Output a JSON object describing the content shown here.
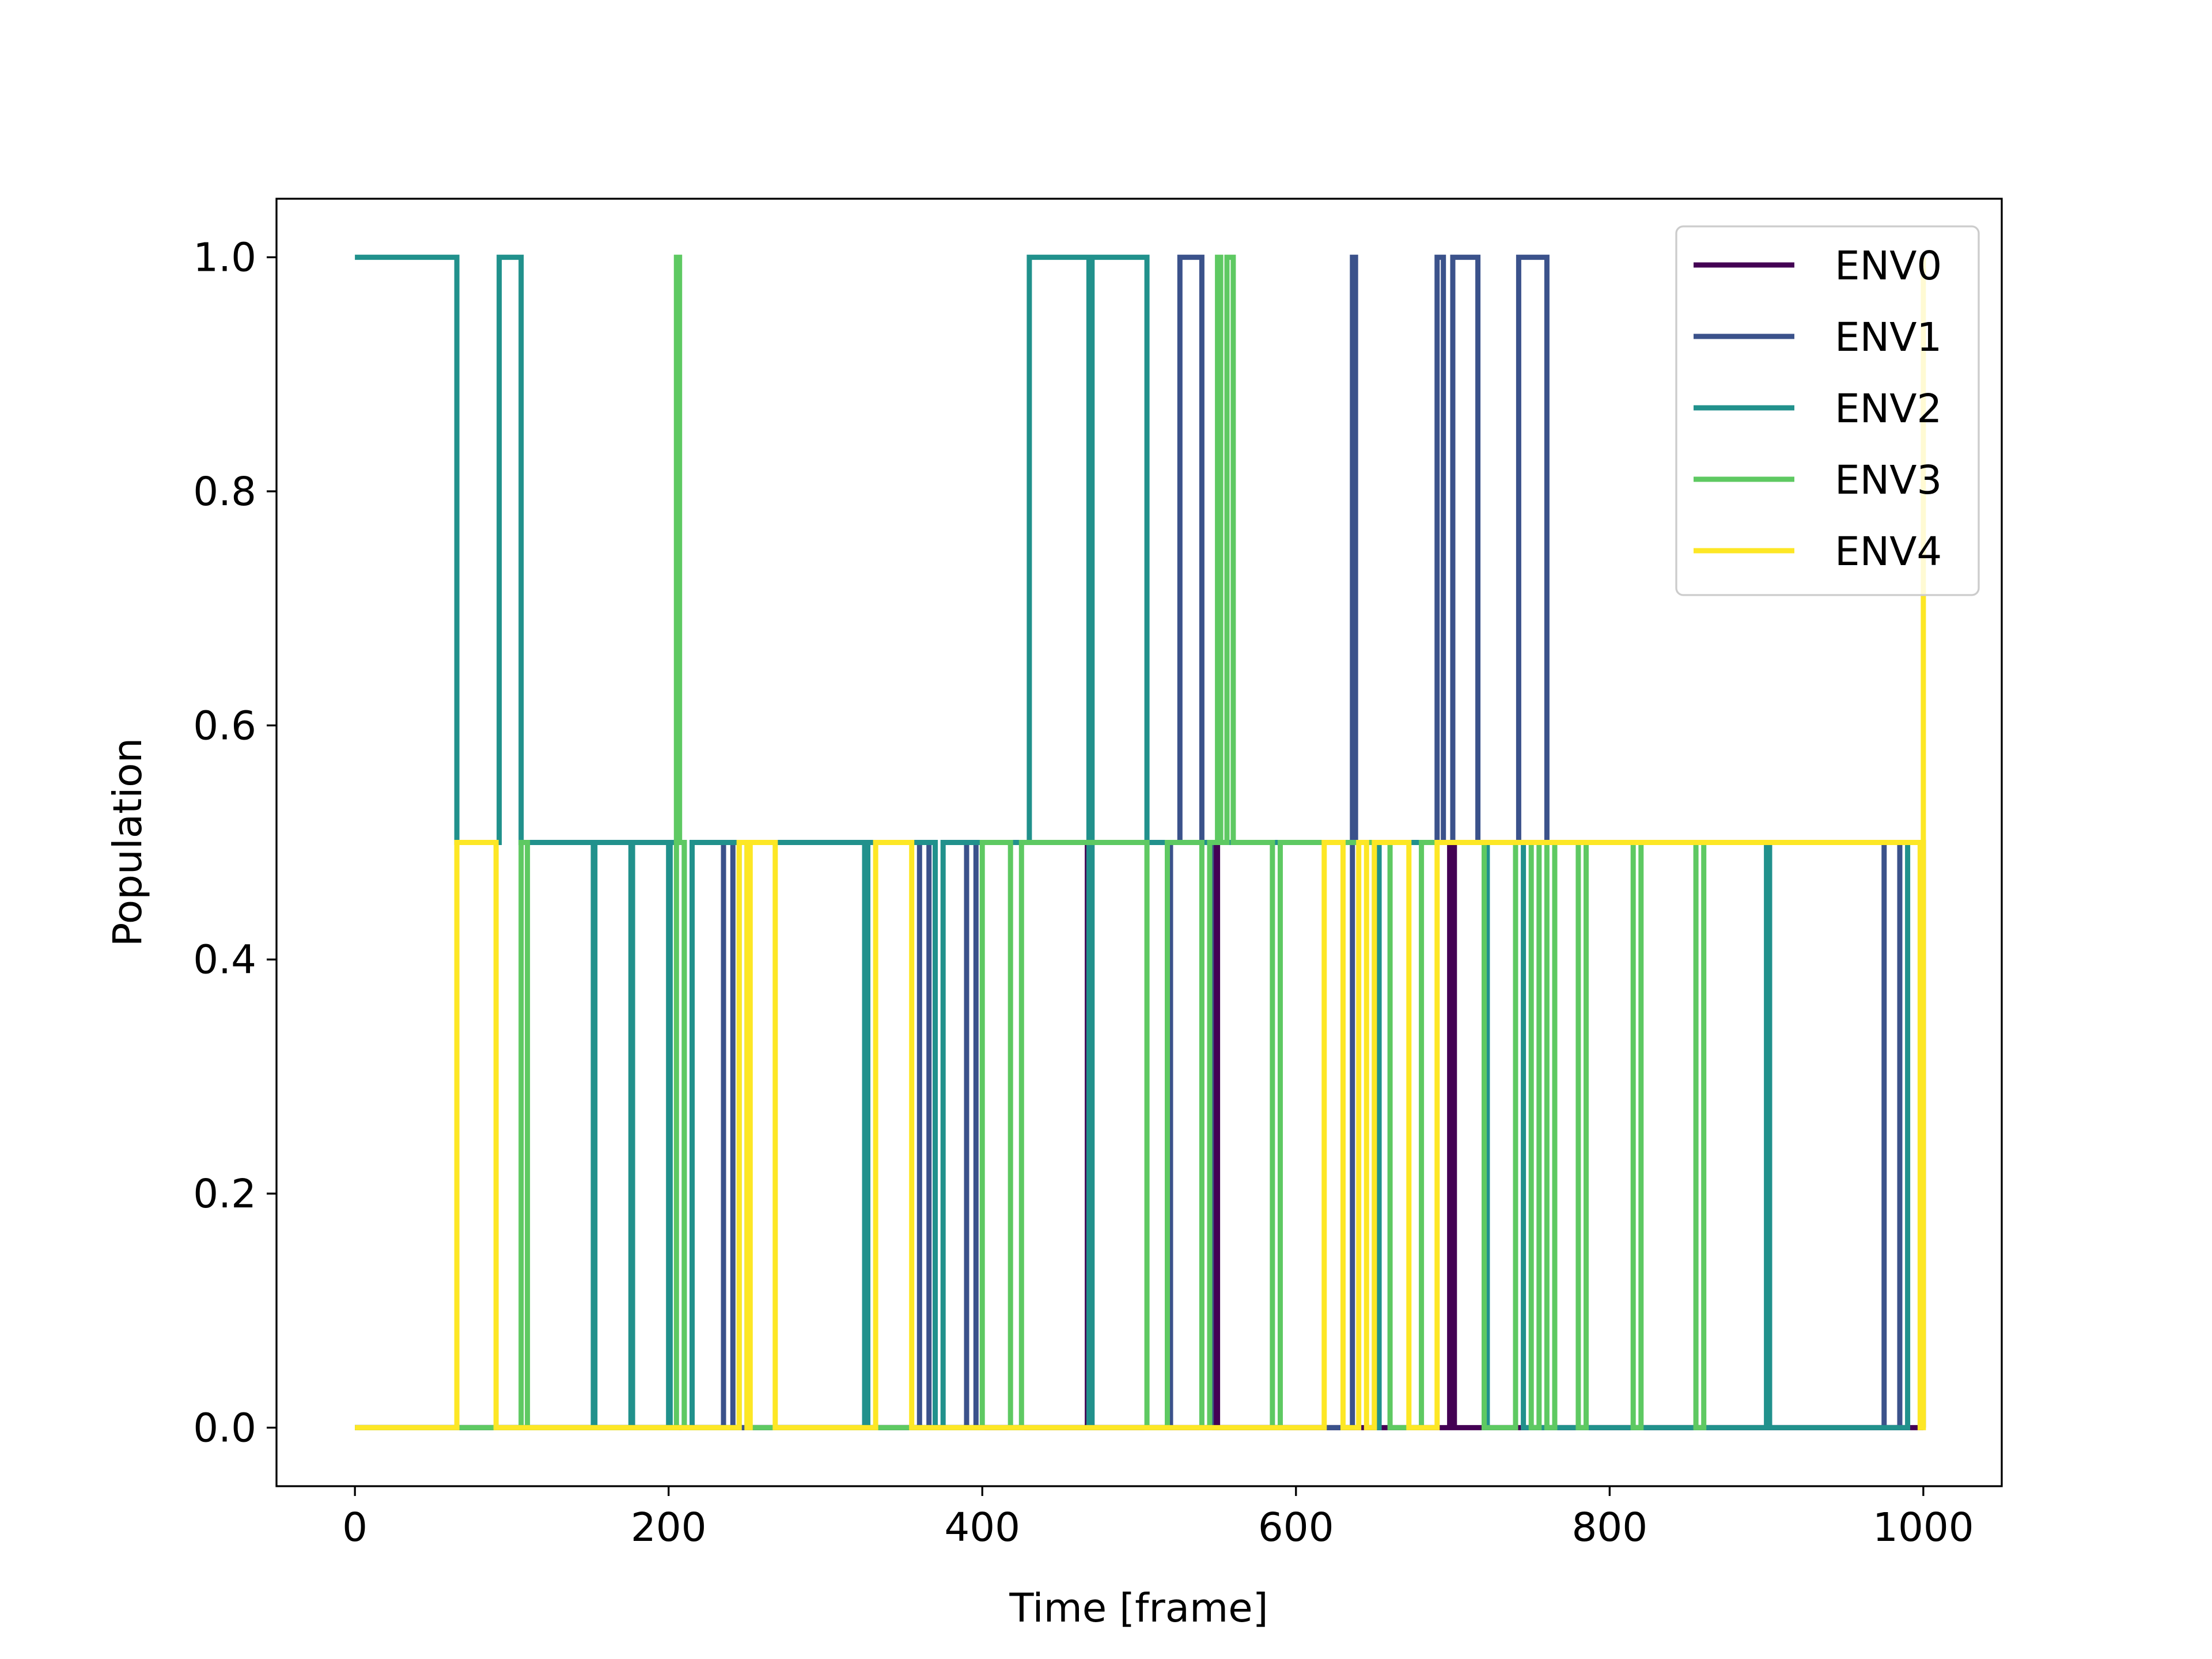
{
  "chart_data": {
    "type": "line",
    "title": "",
    "xlabel": "Time [frame]",
    "ylabel": "Population",
    "xlim": [
      -50,
      1050
    ],
    "ylim": [
      -0.05,
      1.05
    ],
    "xticks": [
      0,
      200,
      400,
      600,
      800,
      1000
    ],
    "xtick_labels": [
      "0",
      "200",
      "400",
      "600",
      "800",
      "1000"
    ],
    "yticks": [
      0.0,
      0.2,
      0.4,
      0.6,
      0.8,
      1.0
    ],
    "ytick_labels": [
      "0.0",
      "0.2",
      "0.4",
      "0.6",
      "0.8",
      "1.0"
    ],
    "grid": false,
    "legend_position": "top-right",
    "step": "post",
    "series": [
      {
        "name": "ENV0",
        "color": "#440154",
        "x": [
          0,
          467,
          469,
          548,
          550,
          698,
          701,
          1000
        ],
        "y": [
          0,
          0.5,
          0,
          0.5,
          0,
          0.5,
          0,
          0
        ]
      },
      {
        "name": "ENV1",
        "color": "#3b528b",
        "x": [
          0,
          235,
          241,
          360,
          366,
          390,
          396,
          520,
          526,
          540,
          546,
          636,
          638,
          690,
          694,
          700,
          716,
          742,
          760,
          975,
          985,
          1000
        ],
        "y": [
          0,
          0.5,
          0,
          0.5,
          0,
          0.5,
          0,
          0.5,
          1,
          0.5,
          0,
          1,
          0.5,
          1,
          0.5,
          1,
          0.5,
          1,
          0.5,
          0,
          0.5,
          0
        ]
      },
      {
        "name": "ENV2",
        "color": "#21918c",
        "x": [
          0,
          65,
          92,
          106,
          152,
          153,
          176,
          177,
          200,
          201,
          210,
          215,
          325,
          327,
          370,
          375,
          430,
          468,
          470,
          505,
          650,
          653,
          720,
          722,
          745,
          900,
          902,
          990,
          1000
        ],
        "y": [
          1,
          0.5,
          1,
          0.5,
          0,
          0.5,
          0,
          0.5,
          0,
          0.5,
          0,
          0.5,
          0,
          0.5,
          0,
          0.5,
          1,
          0,
          1,
          0.5,
          0,
          0.5,
          0,
          0.5,
          0,
          0.5,
          0,
          0.5,
          0.5
        ]
      },
      {
        "name": "ENV3",
        "color": "#5ec962",
        "x": [
          0,
          106,
          110,
          205,
          207,
          210,
          245,
          250,
          400,
          418,
          425,
          505,
          518,
          540,
          545,
          550,
          552,
          556,
          560,
          585,
          590,
          660,
          680,
          720,
          740,
          750,
          755,
          760,
          765,
          780,
          785,
          815,
          820,
          855,
          860,
          1000
        ],
        "y": [
          0,
          0.5,
          0,
          1,
          0.5,
          0,
          0.5,
          0,
          0.5,
          0,
          0.5,
          0,
          0.5,
          0,
          0.5,
          1,
          0.5,
          1,
          0.5,
          0,
          0.5,
          0,
          0.5,
          0,
          0.5,
          0,
          0.5,
          0,
          0.5,
          0,
          0.5,
          0,
          0.5,
          0,
          0.5,
          0.5
        ]
      },
      {
        "name": "ENV4",
        "color": "#fde725",
        "x": [
          0,
          65,
          90,
          245,
          250,
          252,
          268,
          332,
          355,
          618,
          630,
          640,
          645,
          650,
          672,
          690,
          998,
          1000
        ],
        "y": [
          0,
          0.5,
          0,
          0.5,
          0,
          0.5,
          0,
          0.5,
          0,
          0.5,
          0,
          0.5,
          0,
          0.5,
          0,
          0.5,
          0,
          1
        ]
      }
    ]
  }
}
